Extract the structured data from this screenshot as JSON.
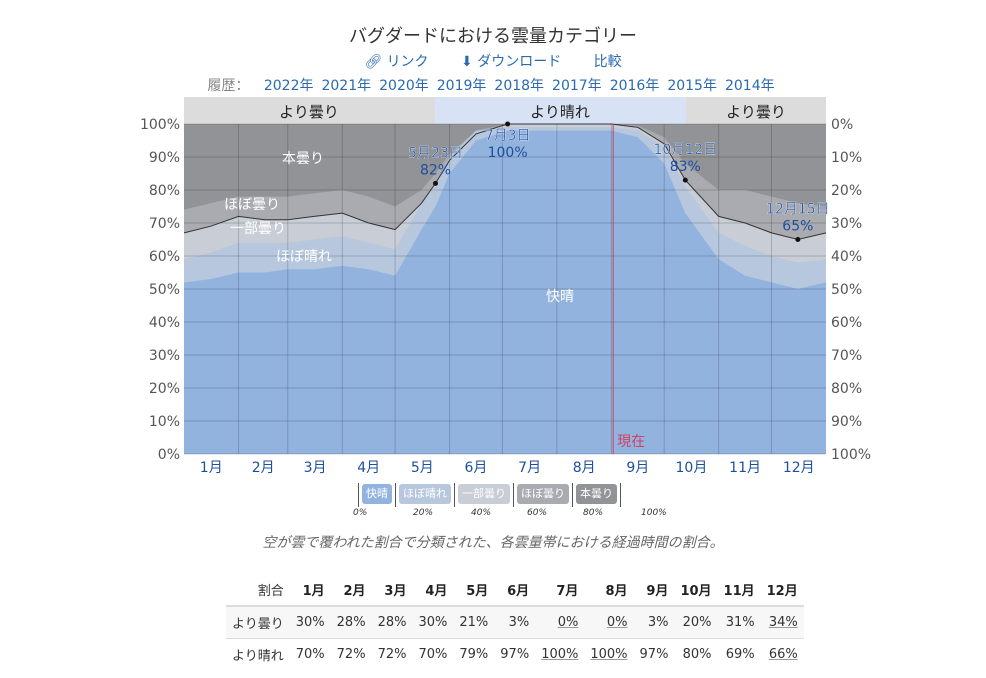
{
  "title": "バグダードにおける雲量カテゴリー",
  "links": {
    "link": "リンク",
    "download": "ダウンロード",
    "compare": "比較"
  },
  "history": {
    "label": "履歴：",
    "years": [
      "2022年",
      "2021年",
      "2020年",
      "2019年",
      "2018年",
      "2017年",
      "2016年",
      "2015年",
      "2014年"
    ]
  },
  "bands": {
    "cloudier": "より曇り",
    "clearer": "より晴れ"
  },
  "colors": {
    "clear": "#93b3df",
    "mostly_clear": "#b6c7de",
    "partly": "#c8cdd6",
    "mostly_cloudy": "#a9abb0",
    "overcast": "#929396",
    "now": "#d04060"
  },
  "chart_data": {
    "type": "area",
    "title": "バグダードにおける雲量カテゴリー",
    "ylim": [
      0,
      100
    ],
    "yticks_left": [
      "0%",
      "10%",
      "20%",
      "30%",
      "40%",
      "50%",
      "60%",
      "70%",
      "80%",
      "90%",
      "100%"
    ],
    "yticks_right": [
      "100%",
      "90%",
      "80%",
      "70%",
      "60%",
      "50%",
      "40%",
      "30%",
      "20%",
      "10%",
      "0%"
    ],
    "months": [
      "1月",
      "2月",
      "3月",
      "4月",
      "5月",
      "6月",
      "7月",
      "8月",
      "9月",
      "10月",
      "11月",
      "12月"
    ],
    "day": [
      0,
      15,
      31,
      46,
      59,
      74,
      90,
      105,
      120,
      135,
      143,
      151,
      166,
      184,
      212,
      243,
      258,
      273,
      285,
      304,
      319,
      334,
      349,
      365
    ],
    "series": [
      {
        "name": "快晴",
        "top": [
          52,
          53,
          55,
          55,
          56,
          56,
          57,
          56,
          54,
          68,
          75,
          85,
          95,
          98,
          98,
          98,
          96,
          88,
          73,
          59,
          54,
          52,
          50,
          52
        ]
      },
      {
        "name": "ほぼ晴れ",
        "top": [
          59,
          61,
          64,
          64,
          64,
          65,
          66,
          64,
          62,
          76,
          81,
          90,
          98,
          99,
          99,
          99,
          98,
          93,
          81,
          67,
          63,
          60,
          58,
          59
        ]
      },
      {
        "name": "一部曇り",
        "top": [
          67,
          69,
          72,
          71,
          71,
          72,
          73,
          70,
          68,
          76,
          82,
          89,
          97,
          100,
          100,
          100,
          99,
          94,
          83,
          72,
          70,
          67,
          65,
          67
        ]
      },
      {
        "name": "ほぼ曇り",
        "top": [
          74,
          76,
          78,
          78,
          78,
          79,
          80,
          78,
          75,
          80,
          85,
          91,
          98,
          100,
          100,
          100,
          99.5,
          96,
          88,
          80,
          80,
          78,
          76,
          75
        ]
      },
      {
        "name": "本曇り",
        "top": [
          100,
          100,
          100,
          100,
          100,
          100,
          100,
          100,
          100,
          100,
          100,
          100,
          100,
          100,
          100,
          100,
          100,
          100,
          100,
          100,
          100,
          100,
          100,
          100
        ]
      }
    ],
    "annotations": [
      {
        "day": 143,
        "value": 82,
        "date": "5月23日",
        "label": "82%"
      },
      {
        "day": 184,
        "value": 100,
        "date": "7月3日",
        "label": "100%"
      },
      {
        "day": 285,
        "value": 83,
        "date": "10月12日",
        "label": "83%"
      },
      {
        "day": 349,
        "value": 65,
        "date": "12月15日",
        "label": "65%"
      }
    ],
    "now": {
      "day": 244,
      "label": "現在"
    }
  },
  "legend": {
    "items": [
      "快晴",
      "ほぼ晴れ",
      "一部曇り",
      "ほぼ曇り",
      "本曇り"
    ],
    "ticks": [
      "0%",
      "20%",
      "40%",
      "60%",
      "80%",
      "100%"
    ]
  },
  "caption": "空が雲で覆われた割合で分類された、各雲量帯における経過時間の割合。",
  "table": {
    "header": [
      "割合",
      "1月",
      "2月",
      "3月",
      "4月",
      "5月",
      "6月",
      "7月",
      "8月",
      "9月",
      "10月",
      "11月",
      "12月"
    ],
    "rows": [
      {
        "label": "より曇り",
        "values": [
          "30%",
          "28%",
          "28%",
          "30%",
          "21%",
          "3%",
          "0%",
          "0%",
          "3%",
          "20%",
          "31%",
          "34%"
        ]
      },
      {
        "label": "より晴れ",
        "values": [
          "70%",
          "72%",
          "72%",
          "70%",
          "79%",
          "97%",
          "100%",
          "100%",
          "97%",
          "80%",
          "69%",
          "66%"
        ]
      }
    ]
  }
}
